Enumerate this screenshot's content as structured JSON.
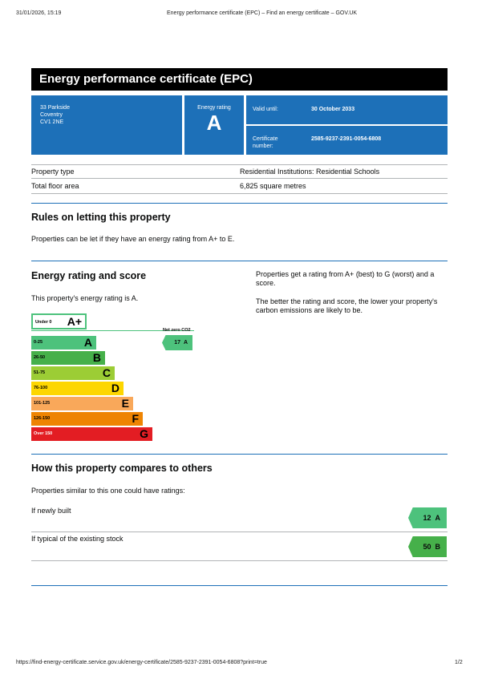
{
  "browser_header": {
    "datetime": "31/01/2026, 15:19",
    "page_title": "Energy performance certificate (EPC) – Find an energy certificate – GOV.UK"
  },
  "certificate": {
    "title": "Energy performance certificate (EPC)",
    "address": [
      "33 Parkside",
      "Coventry",
      "CV1 2NE"
    ],
    "energy_rating_label": "Energy rating",
    "energy_rating": "A",
    "valid_until_label": "Valid until:",
    "valid_until": "30 October 2033",
    "certificate_number_label": "Certificate number:",
    "certificate_number": "2585-9237-2391-0054-6808"
  },
  "property": {
    "type_label": "Property type",
    "type_value": "Residential Institutions: Residential Schools",
    "floor_area_label": "Total floor area",
    "floor_area_value": "6,825 square metres"
  },
  "rules": {
    "heading": "Rules on letting this property",
    "text": "Properties can be let if they have an energy rating from A+ to E."
  },
  "rating_section": {
    "heading": "Energy rating and score",
    "text": "This property's energy rating is A.",
    "info1": "Properties get a rating from A+ (best) to G (worst) and a score.",
    "info2": "The better the rating and score, the lower your property's carbon emissions are likely to be.",
    "net_zero_label": "Net zero CO2",
    "current_score": "17",
    "current_letter": "A",
    "bands": [
      {
        "range": "Under 0",
        "letter": "A+",
        "color": "#ffffff"
      },
      {
        "range": "0-25",
        "letter": "A",
        "color": "#4dc27c"
      },
      {
        "range": "26-50",
        "letter": "B",
        "color": "#46b04a"
      },
      {
        "range": "51-75",
        "letter": "C",
        "color": "#9ccd35"
      },
      {
        "range": "76-100",
        "letter": "D",
        "color": "#fdd600"
      },
      {
        "range": "101-125",
        "letter": "E",
        "color": "#f9a85a"
      },
      {
        "range": "126-150",
        "letter": "F",
        "color": "#ee8402"
      },
      {
        "range": "Over 150",
        "letter": "G",
        "color": "#e31d23"
      }
    ]
  },
  "compare": {
    "heading": "How this property compares to others",
    "intro": "Properties similar to this one could have ratings:",
    "new_label": "If newly built",
    "new_score": "12",
    "new_letter": "A",
    "new_color": "#4dc27c",
    "typical_label": "If typical of the existing stock",
    "typical_score": "50",
    "typical_letter": "B",
    "typical_color": "#46b04a"
  },
  "footer": {
    "url": "https://find-energy-certificate.service.gov.uk/energy-certificate/2585-9237-2391-0054-6808?print=true",
    "page": "1/2"
  }
}
